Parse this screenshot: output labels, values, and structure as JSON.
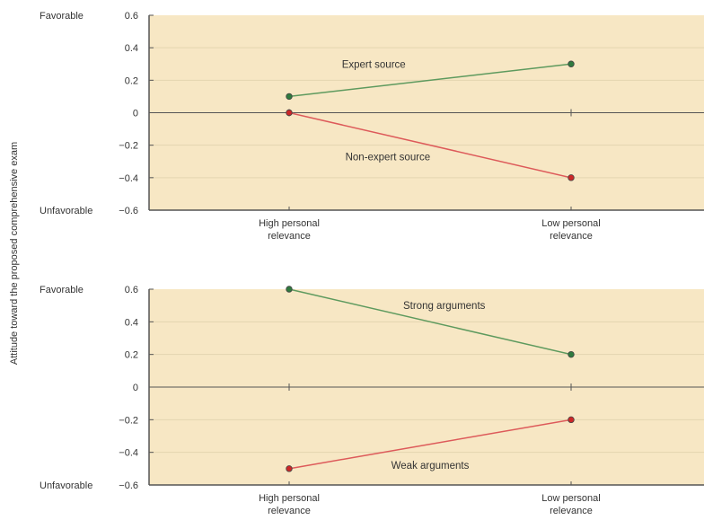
{
  "figure": {
    "ylabel": "Attitude toward the proposed comprehensive exam",
    "colors": {
      "plot_bg": "#f7e7c4",
      "axis": "#555555",
      "grid": "#e4d5b0",
      "green_line": "#5e9a5e",
      "green_marker": "#2f7a3e",
      "red_line": "#dd5a5a",
      "red_marker": "#cc2727",
      "marker_edge": "#444444"
    }
  },
  "chart_data": [
    {
      "type": "line",
      "categories": [
        "High personal relevance",
        "Low personal relevance"
      ],
      "category_lines": [
        [
          "High personal",
          "relevance"
        ],
        [
          "Low personal",
          "relevance"
        ]
      ],
      "ylim": [
        -0.6,
        0.6
      ],
      "yticks": [
        0.6,
        0.4,
        0.2,
        0,
        -0.2,
        -0.4,
        -0.6
      ],
      "ytick_labels": [
        "0.6",
        "0.4",
        "0.2",
        "0",
        "−0.2",
        "−0.4",
        "−0.6"
      ],
      "top_label": "Favorable",
      "bottom_label": "Unfavorable",
      "grid": true,
      "series": [
        {
          "name": "Expert source",
          "values": [
            0.1,
            0.3
          ],
          "color": "green",
          "label_at": [
            0.3,
            0.3
          ]
        },
        {
          "name": "Non-expert source",
          "values": [
            0,
            -0.4
          ],
          "color": "red",
          "label_at": [
            0.35,
            -0.27
          ]
        }
      ]
    },
    {
      "type": "line",
      "categories": [
        "High personal relevance",
        "Low personal relevance"
      ],
      "category_lines": [
        [
          "High personal",
          "relevance"
        ],
        [
          "Low personal",
          "relevance"
        ]
      ],
      "ylim": [
        -0.6,
        0.6
      ],
      "yticks": [
        0.6,
        0.4,
        0.2,
        0,
        -0.2,
        -0.4,
        -0.6
      ],
      "ytick_labels": [
        "0.6",
        "0.4",
        "0.2",
        "0",
        "−0.2",
        "−0.4",
        "−0.6"
      ],
      "top_label": "Favorable",
      "bottom_label": "Unfavorable",
      "grid": true,
      "series": [
        {
          "name": "Strong arguments",
          "values": [
            0.6,
            0.2
          ],
          "color": "green",
          "label_at": [
            0.55,
            0.5
          ]
        },
        {
          "name": "Weak arguments",
          "values": [
            -0.5,
            -0.2
          ],
          "color": "red",
          "label_at": [
            0.5,
            -0.48
          ]
        }
      ]
    }
  ]
}
